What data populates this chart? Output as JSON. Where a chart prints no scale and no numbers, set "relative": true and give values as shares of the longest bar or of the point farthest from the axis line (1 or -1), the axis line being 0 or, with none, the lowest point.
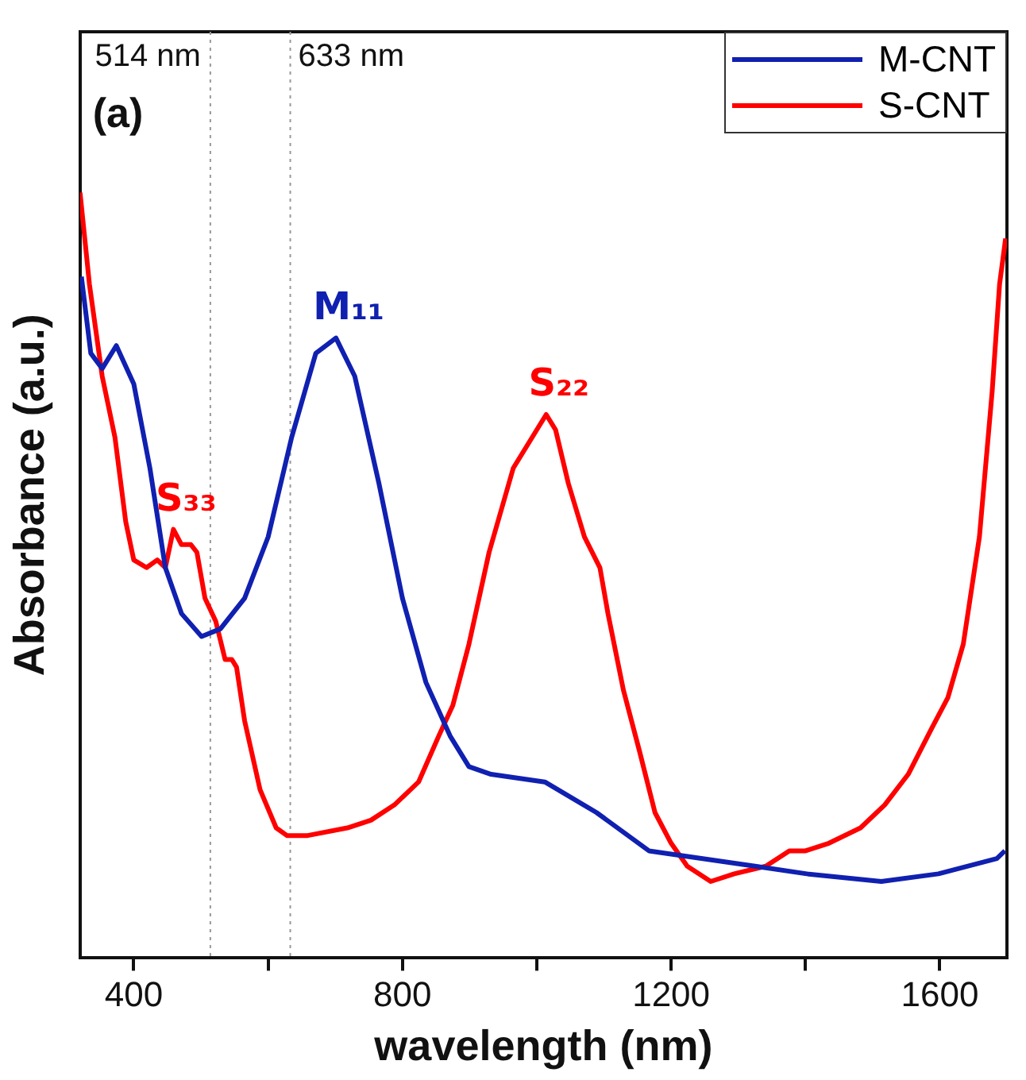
{
  "chart_data": {
    "type": "line",
    "xlabel": "wavelength (nm)",
    "ylabel": "Absorbance (a.u.)",
    "relative": true,
    "xlim": [
      320,
      1700
    ],
    "xticks": [
      400,
      {
        "value": 600,
        "label": null
      },
      800,
      {
        "value": 1000,
        "label": null
      },
      1200,
      {
        "value": 1400,
        "label": null
      },
      1600
    ],
    "grid": false,
    "legend": "top right",
    "marker": "none",
    "line_style": "solid",
    "series": [
      {
        "name": "M-CNT",
        "color": "#1020b0",
        "x": [
          322,
          336,
          353,
          374,
          400,
          424,
          447,
          471,
          501,
          529,
          565,
          600,
          635,
          671,
          701,
          729,
          765,
          800,
          835,
          871,
          899,
          932,
          1012,
          1089,
          1167,
          1245,
          1325,
          1402,
          1513,
          1598,
          1685,
          1697
        ],
        "values": [
          0.89,
          0.79,
          0.77,
          0.8,
          0.75,
          0.64,
          0.51,
          0.45,
          0.42,
          0.43,
          0.47,
          0.55,
          0.68,
          0.79,
          0.81,
          0.76,
          0.62,
          0.47,
          0.36,
          0.29,
          0.25,
          0.24,
          0.23,
          0.19,
          0.14,
          0.13,
          0.12,
          0.11,
          0.1,
          0.11,
          0.13,
          0.14
        ]
      },
      {
        "name": "S-CNT",
        "color": "#ff0000",
        "x": [
          320,
          334,
          353,
          372,
          388,
          400,
          419,
          435,
          447,
          459,
          471,
          485,
          494,
          506,
          522,
          536,
          546,
          553,
          565,
          588,
          612,
          628,
          659,
          718,
          753,
          788,
          824,
          854,
          875,
          899,
          929,
          965,
          1014,
          1028,
          1047,
          1071,
          1094,
          1106,
          1129,
          1153,
          1176,
          1200,
          1224,
          1259,
          1294,
          1341,
          1376,
          1400,
          1435,
          1482,
          1518,
          1553,
          1588,
          1612,
          1635,
          1659,
          1678,
          1689,
          1698
        ],
        "values": [
          1,
          0.88,
          0.76,
          0.68,
          0.57,
          0.52,
          0.51,
          0.52,
          0.51,
          0.56,
          0.54,
          0.54,
          0.53,
          0.47,
          0.44,
          0.39,
          0.39,
          0.38,
          0.31,
          0.22,
          0.17,
          0.16,
          0.16,
          0.17,
          0.18,
          0.2,
          0.23,
          0.29,
          0.33,
          0.41,
          0.53,
          0.64,
          0.71,
          0.69,
          0.62,
          0.55,
          0.51,
          0.45,
          0.35,
          0.27,
          0.19,
          0.15,
          0.12,
          0.1,
          0.11,
          0.12,
          0.14,
          0.14,
          0.15,
          0.17,
          0.2,
          0.24,
          0.3,
          0.34,
          0.41,
          0.55,
          0.74,
          0.88,
          0.94
        ]
      }
    ],
    "ref_lines": [
      {
        "axis": "x",
        "value": 514,
        "label": "514 nm",
        "color": "#999999",
        "line_style": "dotted"
      },
      {
        "axis": "x",
        "value": 633,
        "label": "633 nm",
        "color": "#999999",
        "line_style": "dotted"
      }
    ],
    "annotations": [
      "(a)",
      {
        "text": "M₁₁",
        "x": 701,
        "y": 0.81
      },
      {
        "text": "S₂₂",
        "x": 1014,
        "y": 0.71
      },
      {
        "text": "S₃₃",
        "x": 459,
        "y": 0.56
      }
    ]
  }
}
